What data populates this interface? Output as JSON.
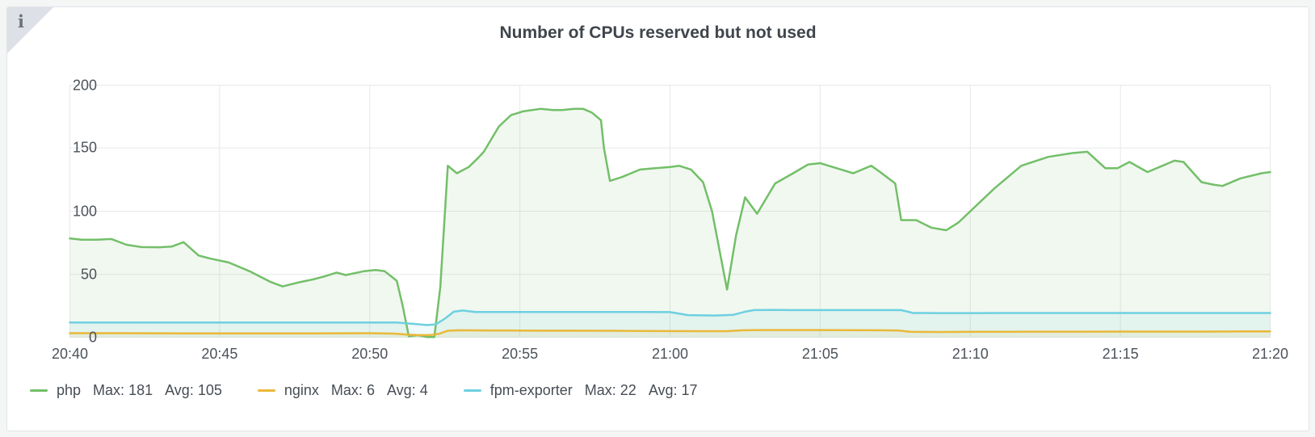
{
  "panel": {
    "title": "Number of CPUs reserved but not used",
    "info_icon_glyph": "i"
  },
  "legend": {
    "max_label": "Max:",
    "avg_label": "Avg:"
  },
  "chart_data": {
    "type": "area",
    "title": "Number of CPUs reserved but not used",
    "grid": true,
    "legend_position": "bottom-left",
    "x_axis": {
      "ticks": [
        "20:40",
        "20:45",
        "20:50",
        "20:55",
        "21:00",
        "21:05",
        "21:10",
        "21:15",
        "21:20"
      ],
      "tick_minutes": [
        0,
        5,
        10,
        15,
        20,
        25,
        30,
        35,
        40
      ],
      "range_minutes": [
        0,
        40
      ]
    },
    "y_axis": {
      "ticks": [
        0,
        50,
        100,
        150,
        200
      ],
      "range": [
        0,
        200
      ]
    },
    "series": [
      {
        "name": "php",
        "color": "#73bf69",
        "fill_opacity": 0.1,
        "max": 181,
        "avg": 105,
        "points": [
          [
            0,
            78.5
          ],
          [
            0.4,
            77.5
          ],
          [
            0.9,
            77.5
          ],
          [
            1.4,
            78
          ],
          [
            1.9,
            73.5
          ],
          [
            2.4,
            71.6
          ],
          [
            3,
            71.5
          ],
          [
            3.4,
            72
          ],
          [
            3.8,
            75.5
          ],
          [
            4.3,
            65
          ],
          [
            4.7,
            62.5
          ],
          [
            5.3,
            59.5
          ],
          [
            6,
            52.5
          ],
          [
            6.7,
            44
          ],
          [
            7.1,
            40.5
          ],
          [
            7.6,
            43.5
          ],
          [
            8.1,
            46
          ],
          [
            8.5,
            48.5
          ],
          [
            8.9,
            51.5
          ],
          [
            9.2,
            49.5
          ],
          [
            9.8,
            52.5
          ],
          [
            10.2,
            53.5
          ],
          [
            10.5,
            52.5
          ],
          [
            10.9,
            45
          ],
          [
            11.1,
            25
          ],
          [
            11.3,
            1
          ],
          [
            11.6,
            2
          ],
          [
            11.9,
            0.5
          ],
          [
            12.15,
            0.5
          ],
          [
            12.35,
            40
          ],
          [
            12.6,
            136
          ],
          [
            12.9,
            130
          ],
          [
            13.3,
            135
          ],
          [
            13.6,
            142
          ],
          [
            13.8,
            147
          ],
          [
            14.3,
            167
          ],
          [
            14.7,
            176
          ],
          [
            15.1,
            179
          ],
          [
            15.7,
            181
          ],
          [
            16.1,
            180
          ],
          [
            16.4,
            180
          ],
          [
            16.8,
            181
          ],
          [
            17.1,
            181
          ],
          [
            17.4,
            178
          ],
          [
            17.7,
            172
          ],
          [
            17.8,
            150
          ],
          [
            18,
            124
          ],
          [
            18.4,
            127
          ],
          [
            19,
            133
          ],
          [
            19.5,
            134
          ],
          [
            20,
            135
          ],
          [
            20.3,
            136
          ],
          [
            20.7,
            133
          ],
          [
            21.1,
            123
          ],
          [
            21.4,
            100
          ],
          [
            21.9,
            38
          ],
          [
            22.2,
            81
          ],
          [
            22.5,
            111
          ],
          [
            22.9,
            98
          ],
          [
            23.5,
            122
          ],
          [
            24.1,
            130
          ],
          [
            24.6,
            137
          ],
          [
            25,
            138
          ],
          [
            25.7,
            133
          ],
          [
            26.1,
            130
          ],
          [
            26.7,
            136
          ],
          [
            27,
            131
          ],
          [
            27.5,
            122
          ],
          [
            27.7,
            93
          ],
          [
            28.2,
            93
          ],
          [
            28.7,
            87
          ],
          [
            29.2,
            85
          ],
          [
            29.6,
            91
          ],
          [
            30,
            100
          ],
          [
            30.8,
            118
          ],
          [
            31.7,
            136
          ],
          [
            32.6,
            143
          ],
          [
            33.4,
            146
          ],
          [
            33.9,
            147
          ],
          [
            34.5,
            134
          ],
          [
            34.9,
            134
          ],
          [
            35.3,
            139
          ],
          [
            35.9,
            131
          ],
          [
            36.4,
            136
          ],
          [
            36.8,
            140
          ],
          [
            37.1,
            139
          ],
          [
            37.7,
            123
          ],
          [
            38.1,
            121
          ],
          [
            38.4,
            120
          ],
          [
            39,
            126
          ],
          [
            39.7,
            130
          ],
          [
            40,
            131
          ]
        ]
      },
      {
        "name": "nginx",
        "color": "#eab839",
        "fill_opacity": 0.1,
        "max": 6,
        "avg": 4,
        "points": [
          [
            0,
            3.5
          ],
          [
            2,
            3.5
          ],
          [
            4,
            3.4
          ],
          [
            6,
            3.3
          ],
          [
            8,
            3.4
          ],
          [
            10,
            3.5
          ],
          [
            10.8,
            3.2
          ],
          [
            11.2,
            2.5
          ],
          [
            11.6,
            2
          ],
          [
            12,
            2
          ],
          [
            12.3,
            3
          ],
          [
            12.6,
            5.5
          ],
          [
            13,
            5.8
          ],
          [
            14,
            5.7
          ],
          [
            15,
            5.6
          ],
          [
            16,
            5.5
          ],
          [
            17,
            5.5
          ],
          [
            18,
            5.4
          ],
          [
            19,
            5.3
          ],
          [
            20,
            5.2
          ],
          [
            21,
            5.1
          ],
          [
            21.9,
            5.1
          ],
          [
            22.4,
            5.8
          ],
          [
            23,
            6
          ],
          [
            24,
            6
          ],
          [
            25,
            6
          ],
          [
            26,
            5.9
          ],
          [
            27,
            5.8
          ],
          [
            27.6,
            5.7
          ],
          [
            28,
            4.6
          ],
          [
            29,
            4.5
          ],
          [
            30,
            4.6
          ],
          [
            31,
            4.6
          ],
          [
            32,
            4.7
          ],
          [
            33,
            4.7
          ],
          [
            34,
            4.7
          ],
          [
            35,
            4.8
          ],
          [
            36,
            4.8
          ],
          [
            37,
            4.8
          ],
          [
            38,
            4.8
          ],
          [
            39,
            4.9
          ],
          [
            40,
            5
          ]
        ]
      },
      {
        "name": "fpm-exporter",
        "color": "#6ed0e0",
        "fill_opacity": 0.1,
        "max": 22,
        "avg": 17,
        "points": [
          [
            0,
            12
          ],
          [
            2,
            12
          ],
          [
            4,
            12
          ],
          [
            6,
            12
          ],
          [
            8,
            12
          ],
          [
            10,
            12
          ],
          [
            10.9,
            12
          ],
          [
            11.4,
            11
          ],
          [
            11.9,
            10
          ],
          [
            12.2,
            10.5
          ],
          [
            12.5,
            15
          ],
          [
            12.8,
            20.5
          ],
          [
            13.1,
            21.5
          ],
          [
            13.5,
            20.3
          ],
          [
            14,
            20.3
          ],
          [
            15,
            20.3
          ],
          [
            16,
            20.3
          ],
          [
            17,
            20.3
          ],
          [
            18,
            20.3
          ],
          [
            19,
            20.3
          ],
          [
            20,
            20.2
          ],
          [
            20.6,
            17.8
          ],
          [
            21.5,
            17.5
          ],
          [
            22.1,
            18
          ],
          [
            22.5,
            20.5
          ],
          [
            22.8,
            21.8
          ],
          [
            23.5,
            22
          ],
          [
            24,
            21.8
          ],
          [
            25,
            21.8
          ],
          [
            26,
            21.8
          ],
          [
            27,
            21.8
          ],
          [
            27.7,
            21.8
          ],
          [
            28.1,
            19.5
          ],
          [
            29,
            19.4
          ],
          [
            30,
            19.4
          ],
          [
            31,
            19.5
          ],
          [
            32,
            19.5
          ],
          [
            33,
            19.5
          ],
          [
            34,
            19.5
          ],
          [
            35,
            19.5
          ],
          [
            36,
            19.5
          ],
          [
            37,
            19.5
          ],
          [
            38,
            19.5
          ],
          [
            39,
            19.5
          ],
          [
            40,
            19.5
          ]
        ]
      }
    ]
  }
}
